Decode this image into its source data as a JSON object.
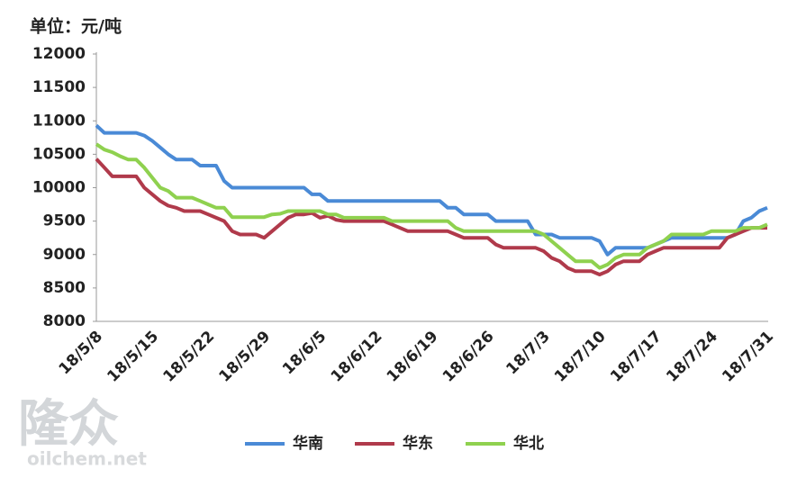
{
  "chart_data": {
    "type": "line",
    "title": "单位：元/吨",
    "categories": [
      "18/5/8",
      null,
      null,
      null,
      null,
      null,
      null,
      "18/5/15",
      null,
      null,
      null,
      null,
      null,
      null,
      "18/5/22",
      null,
      null,
      null,
      null,
      null,
      null,
      "18/5/29",
      null,
      null,
      null,
      null,
      null,
      null,
      "18/6/5",
      null,
      null,
      null,
      null,
      null,
      null,
      "18/6/12",
      null,
      null,
      null,
      null,
      null,
      null,
      "18/6/19",
      null,
      null,
      null,
      null,
      null,
      null,
      "18/6/26",
      null,
      null,
      null,
      null,
      null,
      null,
      "18/7/3",
      null,
      null,
      null,
      null,
      null,
      null,
      "18/7/10",
      null,
      null,
      null,
      null,
      null,
      null,
      "18/7/17",
      null,
      null,
      null,
      null,
      null,
      null,
      "18/7/24",
      null,
      null,
      null,
      null,
      null,
      null,
      "18/7/31"
    ],
    "series": [
      {
        "name": "华南",
        "color": "#4a8ad6",
        "values": [
          10930,
          10820,
          10820,
          10820,
          10820,
          10820,
          10780,
          10700,
          10600,
          10500,
          10420,
          10420,
          10420,
          10330,
          10330,
          10330,
          10100,
          10000,
          10000,
          10000,
          10000,
          10000,
          10000,
          10000,
          10000,
          10000,
          10000,
          9900,
          9900,
          9800,
          9800,
          9800,
          9800,
          9800,
          9800,
          9800,
          9800,
          9800,
          9800,
          9800,
          9800,
          9800,
          9800,
          9800,
          9700,
          9700,
          9600,
          9600,
          9600,
          9600,
          9500,
          9500,
          9500,
          9500,
          9500,
          9300,
          9300,
          9300,
          9250,
          9250,
          9250,
          9250,
          9250,
          9200,
          9000,
          9100,
          9100,
          9100,
          9100,
          9100,
          9150,
          9200,
          9250,
          9250,
          9250,
          9250,
          9250,
          9250,
          9250,
          9250,
          9300,
          9500,
          9550,
          9650,
          9700
        ]
      },
      {
        "name": "华东",
        "color": "#b03a4b",
        "values": [
          10430,
          10300,
          10170,
          10170,
          10170,
          10170,
          10000,
          9900,
          9800,
          9730,
          9700,
          9650,
          9650,
          9650,
          9600,
          9550,
          9500,
          9350,
          9300,
          9300,
          9300,
          9250,
          9350,
          9450,
          9550,
          9600,
          9600,
          9620,
          9550,
          9580,
          9520,
          9500,
          9500,
          9500,
          9500,
          9500,
          9500,
          9450,
          9400,
          9350,
          9350,
          9350,
          9350,
          9350,
          9350,
          9300,
          9250,
          9250,
          9250,
          9250,
          9150,
          9100,
          9100,
          9100,
          9100,
          9100,
          9050,
          8950,
          8900,
          8800,
          8750,
          8750,
          8750,
          8700,
          8750,
          8850,
          8900,
          8900,
          8900,
          9000,
          9050,
          9100,
          9100,
          9100,
          9100,
          9100,
          9100,
          9100,
          9100,
          9250,
          9300,
          9350,
          9400,
          9400,
          9400
        ]
      },
      {
        "name": "华北",
        "color": "#8fd14f",
        "values": [
          10650,
          10570,
          10530,
          10470,
          10420,
          10420,
          10300,
          10150,
          10000,
          9950,
          9850,
          9850,
          9850,
          9800,
          9750,
          9700,
          9700,
          9560,
          9560,
          9560,
          9560,
          9560,
          9600,
          9610,
          9650,
          9650,
          9650,
          9650,
          9650,
          9600,
          9600,
          9550,
          9550,
          9550,
          9550,
          9550,
          9550,
          9500,
          9500,
          9500,
          9500,
          9500,
          9500,
          9500,
          9500,
          9400,
          9350,
          9350,
          9350,
          9350,
          9350,
          9350,
          9350,
          9350,
          9350,
          9350,
          9300,
          9200,
          9100,
          9000,
          8900,
          8900,
          8900,
          8800,
          8850,
          8950,
          9000,
          9000,
          9000,
          9100,
          9150,
          9200,
          9300,
          9300,
          9300,
          9300,
          9300,
          9350,
          9350,
          9350,
          9350,
          9400,
          9400,
          9400,
          9450
        ]
      }
    ],
    "ylim": [
      8000,
      12000
    ],
    "yticks": [
      8000,
      8500,
      9000,
      9500,
      10000,
      10500,
      11000,
      11500,
      12000
    ],
    "grid": false,
    "legend": "bottom",
    "watermark": {
      "logo": "隆众",
      "site": "oilchem.net"
    }
  }
}
